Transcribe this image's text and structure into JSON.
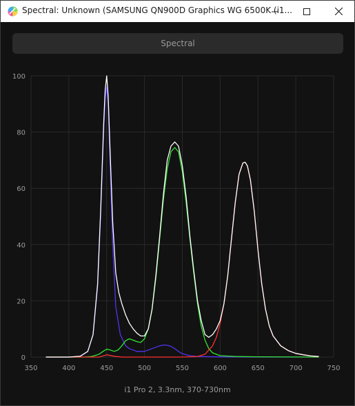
{
  "window": {
    "title": "Spectral: Unknown (SAMSUNG QN900D Graphics WG 6500K (i1...",
    "icon": "color-wheel-icon",
    "controls": [
      "minimize-icon",
      "maximize-icon",
      "close-icon"
    ]
  },
  "mode_button": {
    "label": "Spectral"
  },
  "caption": "i1 Pro 2, 3.3nm, 370-730nm",
  "colors": {
    "background": "#121212",
    "grid": "#2a2a2a",
    "total": "#ffffff",
    "red": "#ff3030",
    "green": "#33e633",
    "blue": "#5533ee"
  },
  "chart_data": {
    "type": "line",
    "title": "",
    "xlabel": "",
    "ylabel": "",
    "xlim": [
      350,
      750
    ],
    "ylim": [
      0,
      100
    ],
    "x_ticks": [
      350,
      400,
      450,
      500,
      550,
      600,
      650,
      700,
      750
    ],
    "y_ticks": [
      0,
      20,
      40,
      60,
      80,
      100
    ],
    "grid": true,
    "legend": "none",
    "series": [
      {
        "color": "#5533ee",
        "x": [
          370,
          400,
          415,
          425,
          432,
          438,
          442,
          446,
          448,
          450,
          452,
          455,
          458,
          462,
          468,
          475,
          480,
          485,
          490,
          495,
          500,
          505,
          510,
          515,
          520,
          525,
          530,
          535,
          540,
          545,
          550,
          560,
          570,
          600,
          650,
          730
        ],
        "y": [
          0,
          0,
          0.2,
          2,
          8,
          25,
          50,
          80,
          92,
          96,
          90,
          65,
          40,
          18,
          8,
          4,
          3,
          2.5,
          2,
          2,
          2,
          2.5,
          3,
          3.5,
          4,
          4.3,
          4.2,
          3.8,
          3,
          2,
          1.2,
          0.5,
          0.2,
          0.05,
          0,
          0
        ]
      },
      {
        "color": "#33e633",
        "x": [
          370,
          420,
          430,
          440,
          445,
          450,
          455,
          460,
          465,
          470,
          475,
          480,
          485,
          490,
          495,
          500,
          505,
          510,
          515,
          520,
          525,
          530,
          535,
          540,
          545,
          550,
          555,
          560,
          565,
          570,
          575,
          580,
          585,
          590,
          600,
          620,
          650,
          730
        ],
        "y": [
          0,
          0,
          0.2,
          1,
          2,
          2.8,
          2.5,
          2,
          2.5,
          4,
          5.8,
          6.5,
          6,
          5.5,
          5.2,
          6.5,
          10,
          17,
          28,
          42,
          56,
          67,
          73,
          74.5,
          73,
          66,
          55,
          42,
          30,
          19,
          11,
          6,
          3,
          1.5,
          0.5,
          0.2,
          0.1,
          0
        ]
      },
      {
        "color": "#ff3030",
        "x": [
          370,
          440,
          450,
          460,
          470,
          500,
          550,
          570,
          580,
          590,
          595,
          600,
          605,
          610,
          615,
          620,
          625,
          630,
          633,
          636,
          640,
          645,
          650,
          655,
          660,
          665,
          670,
          680,
          690,
          700,
          710,
          720,
          730
        ],
        "y": [
          0,
          0,
          0.8,
          0.3,
          0,
          0,
          0,
          0.2,
          1,
          4,
          7,
          12,
          19,
          29,
          42,
          55,
          65,
          69,
          69.3,
          68,
          63,
          52,
          38,
          26,
          17,
          11,
          7.5,
          4,
          2.3,
          1.3,
          0.8,
          0.4,
          0.2
        ]
      },
      {
        "color": "#ffffff",
        "x": [
          370,
          400,
          415,
          425,
          432,
          438,
          442,
          446,
          448,
          450,
          452,
          455,
          458,
          462,
          466,
          470,
          475,
          480,
          485,
          490,
          495,
          500,
          505,
          510,
          515,
          520,
          525,
          530,
          535,
          540,
          545,
          550,
          555,
          560,
          565,
          570,
          575,
          580,
          585,
          590,
          595,
          600,
          605,
          610,
          615,
          620,
          625,
          630,
          633,
          636,
          640,
          645,
          650,
          655,
          660,
          665,
          670,
          680,
          690,
          700,
          710,
          720,
          730
        ],
        "y": [
          0,
          0,
          0.3,
          2,
          8,
          26,
          52,
          83,
          95,
          100,
          93,
          70,
          48,
          30,
          23,
          19,
          15,
          12,
          10,
          8.5,
          7.5,
          7.5,
          10,
          17,
          29,
          43,
          58,
          70,
          75,
          76.5,
          75,
          68,
          57,
          43,
          31,
          20,
          13,
          8,
          7,
          8,
          10,
          13,
          19,
          29,
          42,
          55,
          65,
          69,
          69.3,
          68,
          63,
          52,
          38,
          26,
          17,
          11,
          7.5,
          4,
          2.3,
          1.3,
          0.8,
          0.4,
          0.2
        ]
      }
    ]
  }
}
